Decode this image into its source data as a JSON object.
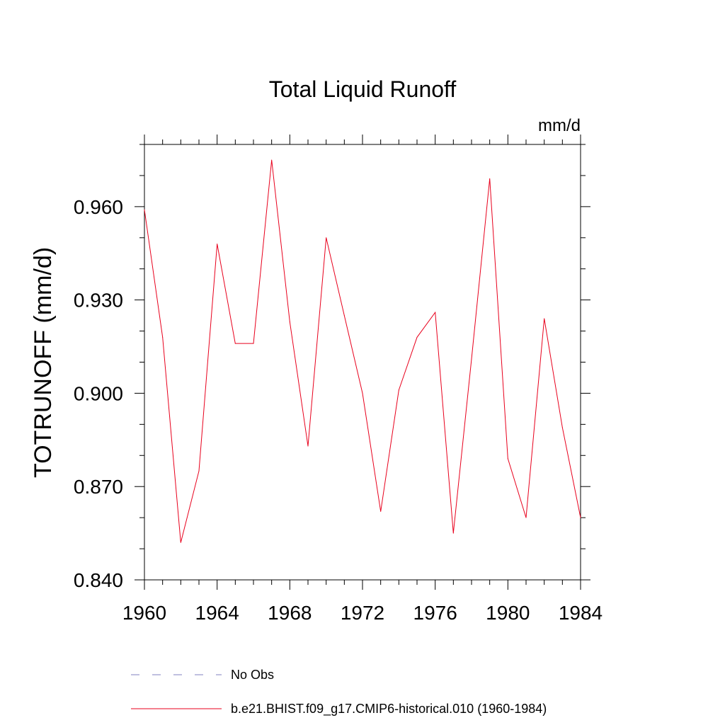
{
  "chart_data": {
    "type": "line",
    "title": "Total Liquid Runoff",
    "units": "mm/d",
    "ylabel": "TOTRUNOFF  (mm/d)",
    "xlabel": "",
    "xlim": [
      1960,
      1984
    ],
    "ylim": [
      0.84,
      0.98
    ],
    "x_ticks": [
      1960,
      1964,
      1968,
      1972,
      1976,
      1980,
      1984
    ],
    "y_ticks": [
      "0.840",
      "0.870",
      "0.900",
      "0.930",
      "0.960"
    ],
    "grid": false,
    "legend_position": "bottom",
    "series": [
      {
        "name": "b.e21.BHIST.f09_g17.CMIP6-historical.010 (1960-1984)",
        "color": "#e8001c",
        "style": "solid",
        "x": [
          1960,
          1961,
          1962,
          1963,
          1964,
          1965,
          1966,
          1967,
          1968,
          1969,
          1970,
          1971,
          1972,
          1973,
          1974,
          1975,
          1976,
          1977,
          1978,
          1979,
          1980,
          1981,
          1982,
          1983,
          1984
        ],
        "y": [
          0.959,
          0.918,
          0.852,
          0.875,
          0.948,
          0.916,
          0.916,
          0.975,
          0.923,
          0.883,
          0.95,
          0.925,
          0.9,
          0.862,
          0.901,
          0.918,
          0.926,
          0.855,
          0.911,
          0.969,
          0.879,
          0.86,
          0.924,
          0.889,
          0.86
        ]
      },
      {
        "name": "No Obs",
        "color": "#8080c0",
        "style": "dashed",
        "x": [],
        "y": []
      }
    ]
  }
}
